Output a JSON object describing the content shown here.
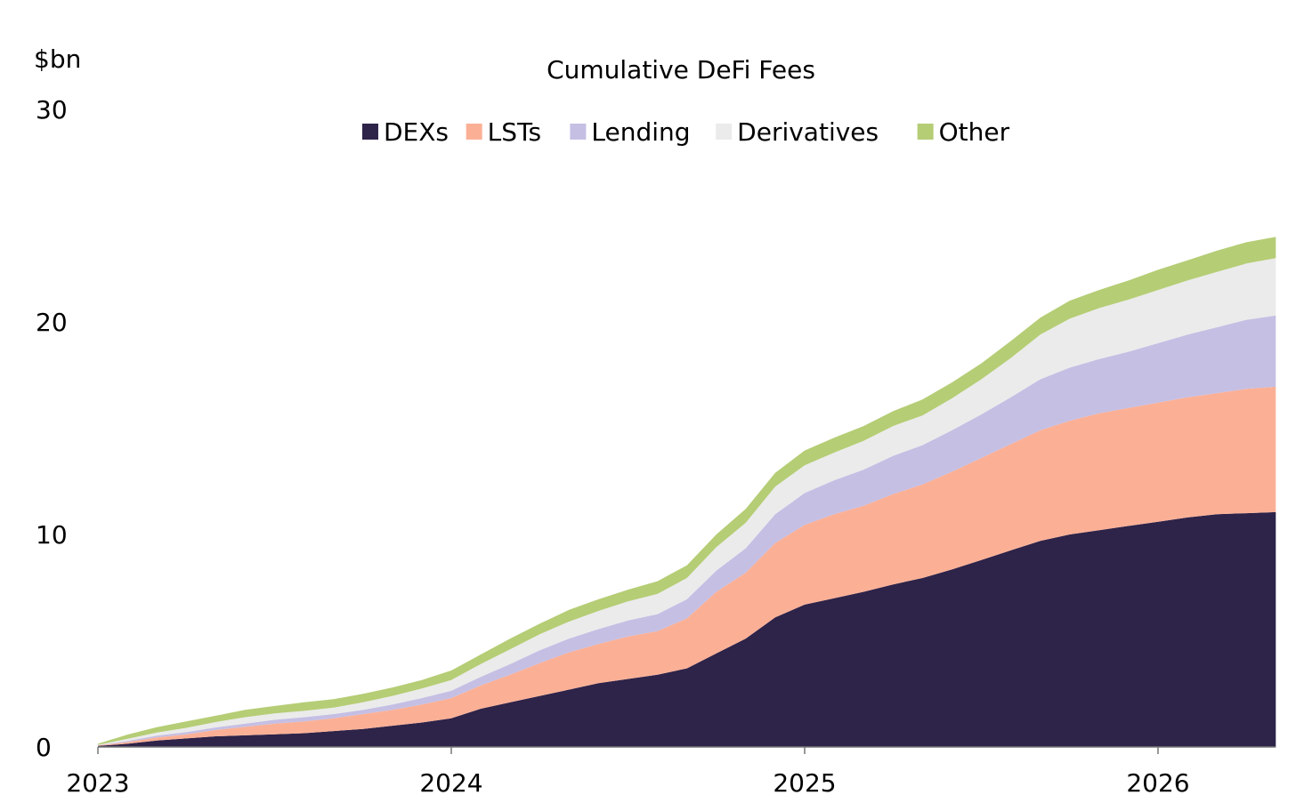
{
  "chart_data": {
    "type": "area",
    "stacked": true,
    "title": "Cumulative DeFi Fees",
    "ylabel": "$bn",
    "xlabel": "",
    "ylim": [
      0,
      30
    ],
    "yticks": [
      0,
      10,
      20,
      30
    ],
    "xticks": [
      "2023",
      "2024",
      "2025",
      "2026"
    ],
    "legend_position": "top-center",
    "grid": false,
    "x": [
      "2023-01",
      "2023-02",
      "2023-03",
      "2023-04",
      "2023-05",
      "2023-06",
      "2023-07",
      "2023-08",
      "2023-09",
      "2023-10",
      "2023-11",
      "2023-12",
      "2024-01",
      "2024-02",
      "2024-03",
      "2024-04",
      "2024-05",
      "2024-06",
      "2024-07",
      "2024-08",
      "2024-09",
      "2024-10",
      "2024-11",
      "2024-12",
      "2025-01",
      "2025-02",
      "2025-03",
      "2025-04",
      "2025-05",
      "2025-06",
      "2025-07",
      "2025-08",
      "2025-09",
      "2025-10",
      "2025-11",
      "2025-12",
      "2026-01",
      "2026-02",
      "2026-03",
      "2026-04",
      "2026-05"
    ],
    "series": [
      {
        "name": "DEXs",
        "color": "#2E2349",
        "values": [
          0.05,
          0.15,
          0.3,
          0.4,
          0.5,
          0.55,
          0.6,
          0.65,
          0.75,
          0.85,
          1.0,
          1.15,
          1.35,
          1.8,
          2.1,
          2.4,
          2.7,
          3.0,
          3.2,
          3.4,
          3.7,
          4.4,
          5.1,
          6.1,
          6.7,
          7.0,
          7.3,
          7.65,
          7.95,
          8.35,
          8.8,
          9.25,
          9.7,
          10.0,
          10.2,
          10.4,
          10.6,
          10.8,
          10.95,
          11.0,
          11.05
        ]
      },
      {
        "name": "LSTs",
        "color": "#FBB096",
        "values": [
          0.02,
          0.08,
          0.15,
          0.2,
          0.3,
          0.4,
          0.5,
          0.55,
          0.6,
          0.7,
          0.75,
          0.85,
          0.95,
          1.1,
          1.3,
          1.55,
          1.75,
          1.85,
          2.0,
          2.05,
          2.35,
          2.9,
          3.1,
          3.5,
          3.75,
          3.95,
          4.05,
          4.25,
          4.4,
          4.6,
          4.8,
          5.0,
          5.2,
          5.35,
          5.5,
          5.55,
          5.6,
          5.65,
          5.7,
          5.85,
          5.9
        ]
      },
      {
        "name": "Lending",
        "color": "#C5BFE4",
        "values": [
          0.01,
          0.05,
          0.08,
          0.1,
          0.12,
          0.15,
          0.18,
          0.2,
          0.2,
          0.2,
          0.25,
          0.3,
          0.35,
          0.4,
          0.5,
          0.6,
          0.65,
          0.7,
          0.75,
          0.8,
          0.9,
          1.0,
          1.15,
          1.35,
          1.5,
          1.6,
          1.7,
          1.8,
          1.85,
          1.95,
          2.05,
          2.2,
          2.4,
          2.5,
          2.55,
          2.65,
          2.8,
          2.95,
          3.1,
          3.25,
          3.35
        ]
      },
      {
        "name": "Derivatives",
        "color": "#EBEBEB",
        "values": [
          0.02,
          0.1,
          0.15,
          0.2,
          0.25,
          0.3,
          0.3,
          0.3,
          0.3,
          0.35,
          0.4,
          0.45,
          0.5,
          0.6,
          0.7,
          0.75,
          0.8,
          0.85,
          0.9,
          0.95,
          1.0,
          1.1,
          1.2,
          1.3,
          1.3,
          1.3,
          1.35,
          1.4,
          1.4,
          1.5,
          1.65,
          1.85,
          2.1,
          2.3,
          2.4,
          2.45,
          2.5,
          2.55,
          2.6,
          2.65,
          2.7
        ]
      },
      {
        "name": "Other",
        "color": "#B5CD75",
        "values": [
          0.05,
          0.2,
          0.25,
          0.3,
          0.3,
          0.35,
          0.35,
          0.4,
          0.4,
          0.4,
          0.4,
          0.4,
          0.45,
          0.45,
          0.5,
          0.5,
          0.55,
          0.55,
          0.55,
          0.6,
          0.6,
          0.6,
          0.65,
          0.65,
          0.7,
          0.7,
          0.7,
          0.7,
          0.75,
          0.75,
          0.75,
          0.8,
          0.8,
          0.85,
          0.85,
          0.9,
          0.95,
          0.95,
          1.0,
          1.0,
          1.0
        ]
      }
    ]
  }
}
